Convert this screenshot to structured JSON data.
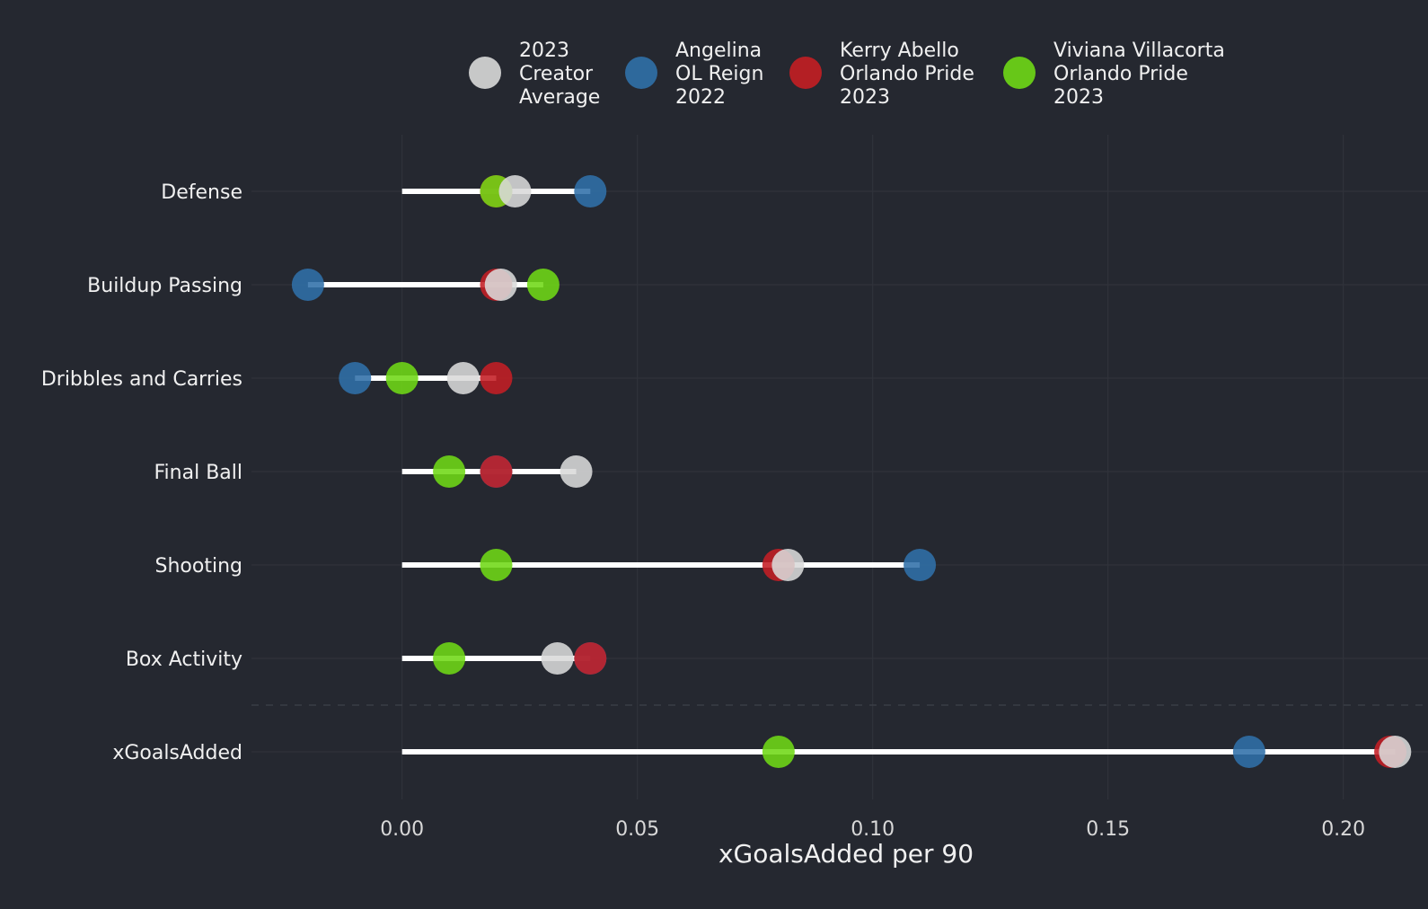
{
  "chart_data": {
    "type": "dot",
    "title": "",
    "xlabel": "xGoalsAdded per 90",
    "ylabel": "",
    "xlim": [
      -0.032,
      0.218
    ],
    "x_ticks": [
      0.0,
      0.05,
      0.1,
      0.15,
      0.2
    ],
    "x_tick_labels": [
      "0.00",
      "0.05",
      "0.10",
      "0.15",
      "0.20"
    ],
    "grid": true,
    "legend_position": "top",
    "categories": [
      "Defense",
      "Buildup Passing",
      "Dribbles and Carries",
      "Final Ball",
      "Shooting",
      "Box Activity",
      "xGoalsAdded"
    ],
    "series": [
      {
        "key": "avg",
        "legend_lines": [
          "2023",
          "Creator",
          "Average"
        ],
        "color": "#d9d9d9",
        "values": [
          0.024,
          0.021,
          0.013,
          0.037,
          0.082,
          0.033,
          0.211
        ]
      },
      {
        "key": "angelina",
        "legend_lines": [
          "Angelina",
          "OL Reign",
          "2022"
        ],
        "color": "#3070a8",
        "values": [
          0.04,
          -0.02,
          -0.01,
          0.02,
          0.11,
          0.04,
          0.18
        ]
      },
      {
        "key": "kerry",
        "legend_lines": [
          "Kerry Abello",
          "Orlando Pride",
          "2023"
        ],
        "color": "#c41e24",
        "values": [
          0.02,
          0.02,
          0.02,
          0.02,
          0.08,
          0.04,
          0.21
        ]
      },
      {
        "key": "viviana",
        "legend_lines": [
          "Viviana Villacorta",
          "Orlando Pride",
          "2023"
        ],
        "color": "#6fd816",
        "values": [
          0.02,
          0.03,
          0.0,
          0.01,
          0.02,
          0.01,
          0.08
        ]
      }
    ]
  },
  "colors": {
    "background": "#252830",
    "grid": "#30333b",
    "text": "#f0f0f0",
    "segment": "#ffffff"
  }
}
